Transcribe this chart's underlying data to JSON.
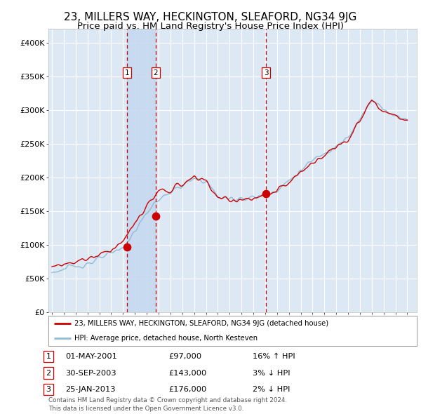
{
  "title": "23, MILLERS WAY, HECKINGTON, SLEAFORD, NG34 9JG",
  "subtitle": "Price paid vs. HM Land Registry's House Price Index (HPI)",
  "title_fontsize": 11,
  "subtitle_fontsize": 9.5,
  "ylabel_ticks": [
    "£0",
    "£50K",
    "£100K",
    "£150K",
    "£200K",
    "£250K",
    "£300K",
    "£350K",
    "£400K"
  ],
  "ytick_vals": [
    0,
    50000,
    100000,
    150000,
    200000,
    250000,
    300000,
    350000,
    400000
  ],
  "ylim": [
    0,
    420000
  ],
  "xlim_start": 1994.7,
  "xlim_end": 2025.8,
  "background_color": "#ffffff",
  "plot_bg_color": "#dde8f5",
  "grid_color": "#ffffff",
  "purchases": [
    {
      "label": "1",
      "date_num": 2001.33,
      "price": 97000,
      "date_str": "01-MAY-2001",
      "hpi_rel": "16% ↑ HPI"
    },
    {
      "label": "2",
      "date_num": 2003.75,
      "price": 143000,
      "date_str": "30-SEP-2003",
      "hpi_rel": "3% ↓ HPI"
    },
    {
      "label": "3",
      "date_num": 2013.07,
      "price": 176000,
      "date_str": "25-JAN-2013",
      "hpi_rel": "2% ↓ HPI"
    }
  ],
  "legend_line1": "23, MILLERS WAY, HECKINGTON, SLEAFORD, NG34 9JG (detached house)",
  "legend_line2": "HPI: Average price, detached house, North Kesteven",
  "footer": "Contains HM Land Registry data © Crown copyright and database right 2024.\nThis data is licensed under the Open Government Licence v3.0.",
  "red_line_color": "#cc0000",
  "blue_line_color": "#90bcd8",
  "dot_color": "#cc0000",
  "dashed_line_color": "#cc0000",
  "shade_color": "#c5d8ee",
  "label_box_color": "#ffffff",
  "label_box_edge": "#cc0000",
  "x_years": [
    1995,
    1996,
    1997,
    1998,
    1999,
    2000,
    2001,
    2002,
    2003,
    2004,
    2005,
    2006,
    2007,
    2008,
    2009,
    2010,
    2011,
    2012,
    2013,
    2014,
    2015,
    2016,
    2017,
    2018,
    2019,
    2020,
    2021,
    2022,
    2023,
    2024,
    2025
  ],
  "hpi_base": [
    60000,
    64000,
    68500,
    73000,
    79000,
    87000,
    97000,
    120000,
    148000,
    168000,
    178000,
    188000,
    197000,
    195000,
    172000,
    168000,
    170000,
    170000,
    175000,
    182000,
    195000,
    210000,
    225000,
    237000,
    248000,
    258000,
    285000,
    318000,
    300000,
    292000,
    288000
  ],
  "red_base": [
    68000,
    72000,
    76000,
    80000,
    86000,
    94000,
    105000,
    132000,
    158000,
    178000,
    182000,
    190000,
    200000,
    196000,
    170000,
    166000,
    168000,
    167000,
    173000,
    180000,
    192000,
    207000,
    222000,
    234000,
    246000,
    256000,
    283000,
    315000,
    297000,
    290000,
    285000
  ]
}
